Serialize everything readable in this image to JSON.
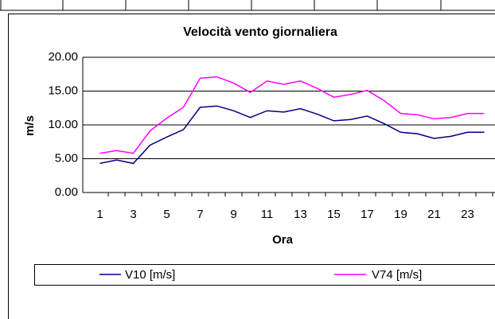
{
  "chart_data": {
    "type": "line",
    "title": "Velocità vento giornaliera",
    "x_label": "Ora",
    "y_label": "m/s",
    "categories": [
      "1",
      null,
      "3",
      null,
      "5",
      null,
      "7",
      null,
      "9",
      null,
      "11",
      null,
      "13",
      null,
      "15",
      null,
      "17",
      null,
      "19",
      null,
      "21",
      null,
      "23",
      null
    ],
    "series": [
      {
        "name": "V10 [m/s]",
        "color": "#000080",
        "values": [
          4.3,
          4.8,
          4.3,
          7.0,
          8.2,
          9.3,
          12.6,
          12.8,
          12.1,
          11.1,
          12.1,
          11.9,
          12.4,
          11.6,
          10.6,
          10.8,
          11.3,
          10.2,
          8.9,
          8.7,
          8.0,
          8.3,
          8.9,
          8.9
        ]
      },
      {
        "name": "V74 [m/s]",
        "color": "#ff00ff",
        "values": [
          5.8,
          6.2,
          5.8,
          9.1,
          11.0,
          12.6,
          16.9,
          17.1,
          16.2,
          14.8,
          16.5,
          16.0,
          16.5,
          15.4,
          14.1,
          14.5,
          15.1,
          13.6,
          11.7,
          11.5,
          10.9,
          11.1,
          11.7,
          11.7
        ]
      }
    ],
    "ylim": [
      0,
      20
    ],
    "yticks": [
      {
        "value": 0,
        "label": "0.00"
      },
      {
        "value": 5,
        "label": "5.00"
      },
      {
        "value": 10,
        "label": "10.00"
      },
      {
        "value": 15,
        "label": "15.00"
      },
      {
        "value": 20,
        "label": "20.00"
      }
    ],
    "grid": true,
    "legend": "bottom"
  }
}
